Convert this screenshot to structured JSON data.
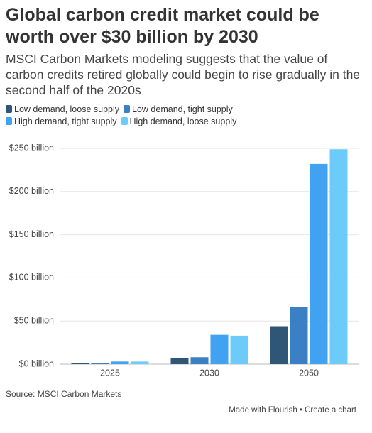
{
  "chart_data": {
    "type": "bar",
    "title": "Global carbon credit market could be worth over $30 billion by 2030",
    "subtitle": "MSCI Carbon Markets modeling suggests that the value of carbon credits retired globally could begin to rise gradually in the second half of the 2020s",
    "categories": [
      "2025",
      "2030",
      "2050"
    ],
    "series": [
      {
        "name": "Low demand, loose supply",
        "color": "#2f5677",
        "values": [
          1,
          7,
          44
        ]
      },
      {
        "name": "Low demand, tight supply",
        "color": "#3b80c4",
        "values": [
          1,
          8,
          66
        ]
      },
      {
        "name": "High demand, tight supply",
        "color": "#40a2f0",
        "values": [
          3,
          34,
          232
        ]
      },
      {
        "name": "High demand, loose supply",
        "color": "#6dcbfa",
        "values": [
          3,
          33,
          249
        ]
      }
    ],
    "ylim": [
      0,
      250
    ],
    "yticks": [
      {
        "value": 0,
        "label": "$0 billion"
      },
      {
        "value": 50,
        "label": "$50 billion"
      },
      {
        "value": 100,
        "label": "$100 billion"
      },
      {
        "value": 150,
        "label": "$150 billion"
      },
      {
        "value": 200,
        "label": "$200 billion"
      },
      {
        "value": 250,
        "label": "$250 billion"
      }
    ],
    "grid": true,
    "source": "Source: MSCI Carbon Markets",
    "credit": "Made with Flourish • Create a chart"
  }
}
